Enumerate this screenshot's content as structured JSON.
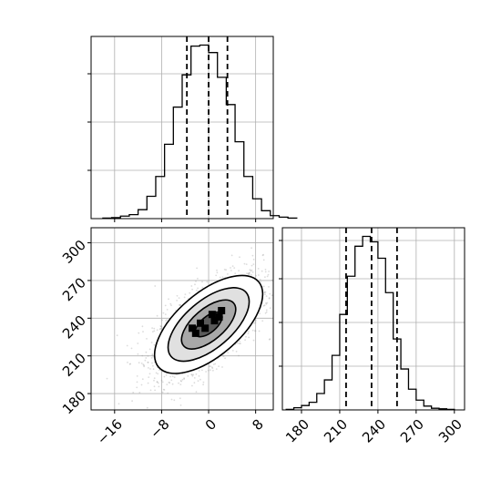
{
  "chart_data": {
    "type": "corner",
    "parameters": [
      "",
      ""
    ],
    "panels": [
      {
        "panel": "histogram-param-1",
        "type": "histogram",
        "xlim": [
          -20,
          11
        ],
        "bin_width": 1.5,
        "bin_start": -18,
        "counts": [
          1,
          2,
          5,
          8,
          18,
          45,
          85,
          150,
          225,
          290,
          348,
          350,
          335,
          285,
          230,
          155,
          85,
          40,
          16,
          6,
          3,
          1
        ],
        "quantile_lines": [
          -3.7,
          0.0,
          3.2
        ],
        "grid": true
      },
      {
        "panel": "scatter-2d-param-1-vs-param-2",
        "type": "2d-density-contour",
        "xlim": [
          -20,
          11
        ],
        "ylim": [
          167,
          312
        ],
        "x_ticks": [
          "−16",
          "−8",
          "0",
          "8"
        ],
        "x_tick_values": [
          -16,
          -8,
          0,
          8
        ],
        "y_ticks": [
          "180",
          "210",
          "240",
          "270",
          "300"
        ],
        "y_tick_values": [
          180,
          210,
          240,
          270,
          300
        ],
        "mean": [
          0,
          235
        ],
        "std": [
          4.6,
          19.5
        ],
        "correlation": 0.62,
        "contour_levels_sigma": [
          0.5,
          1.0,
          1.5,
          2.0
        ],
        "grid": true
      },
      {
        "panel": "histogram-param-2",
        "type": "histogram",
        "xlim": [
          165,
          308
        ],
        "bin_width": 6,
        "bin_start": 168,
        "counts": [
          1,
          4,
          8,
          14,
          30,
          55,
          100,
          175,
          245,
          300,
          318,
          308,
          278,
          215,
          130,
          75,
          38,
          18,
          7,
          3,
          2,
          1
        ],
        "quantile_lines": [
          215,
          235,
          255
        ],
        "x_ticks": [
          "180",
          "210",
          "240",
          "270",
          "300"
        ],
        "x_tick_values": [
          180,
          210,
          240,
          270,
          300
        ],
        "grid": true
      }
    ]
  }
}
